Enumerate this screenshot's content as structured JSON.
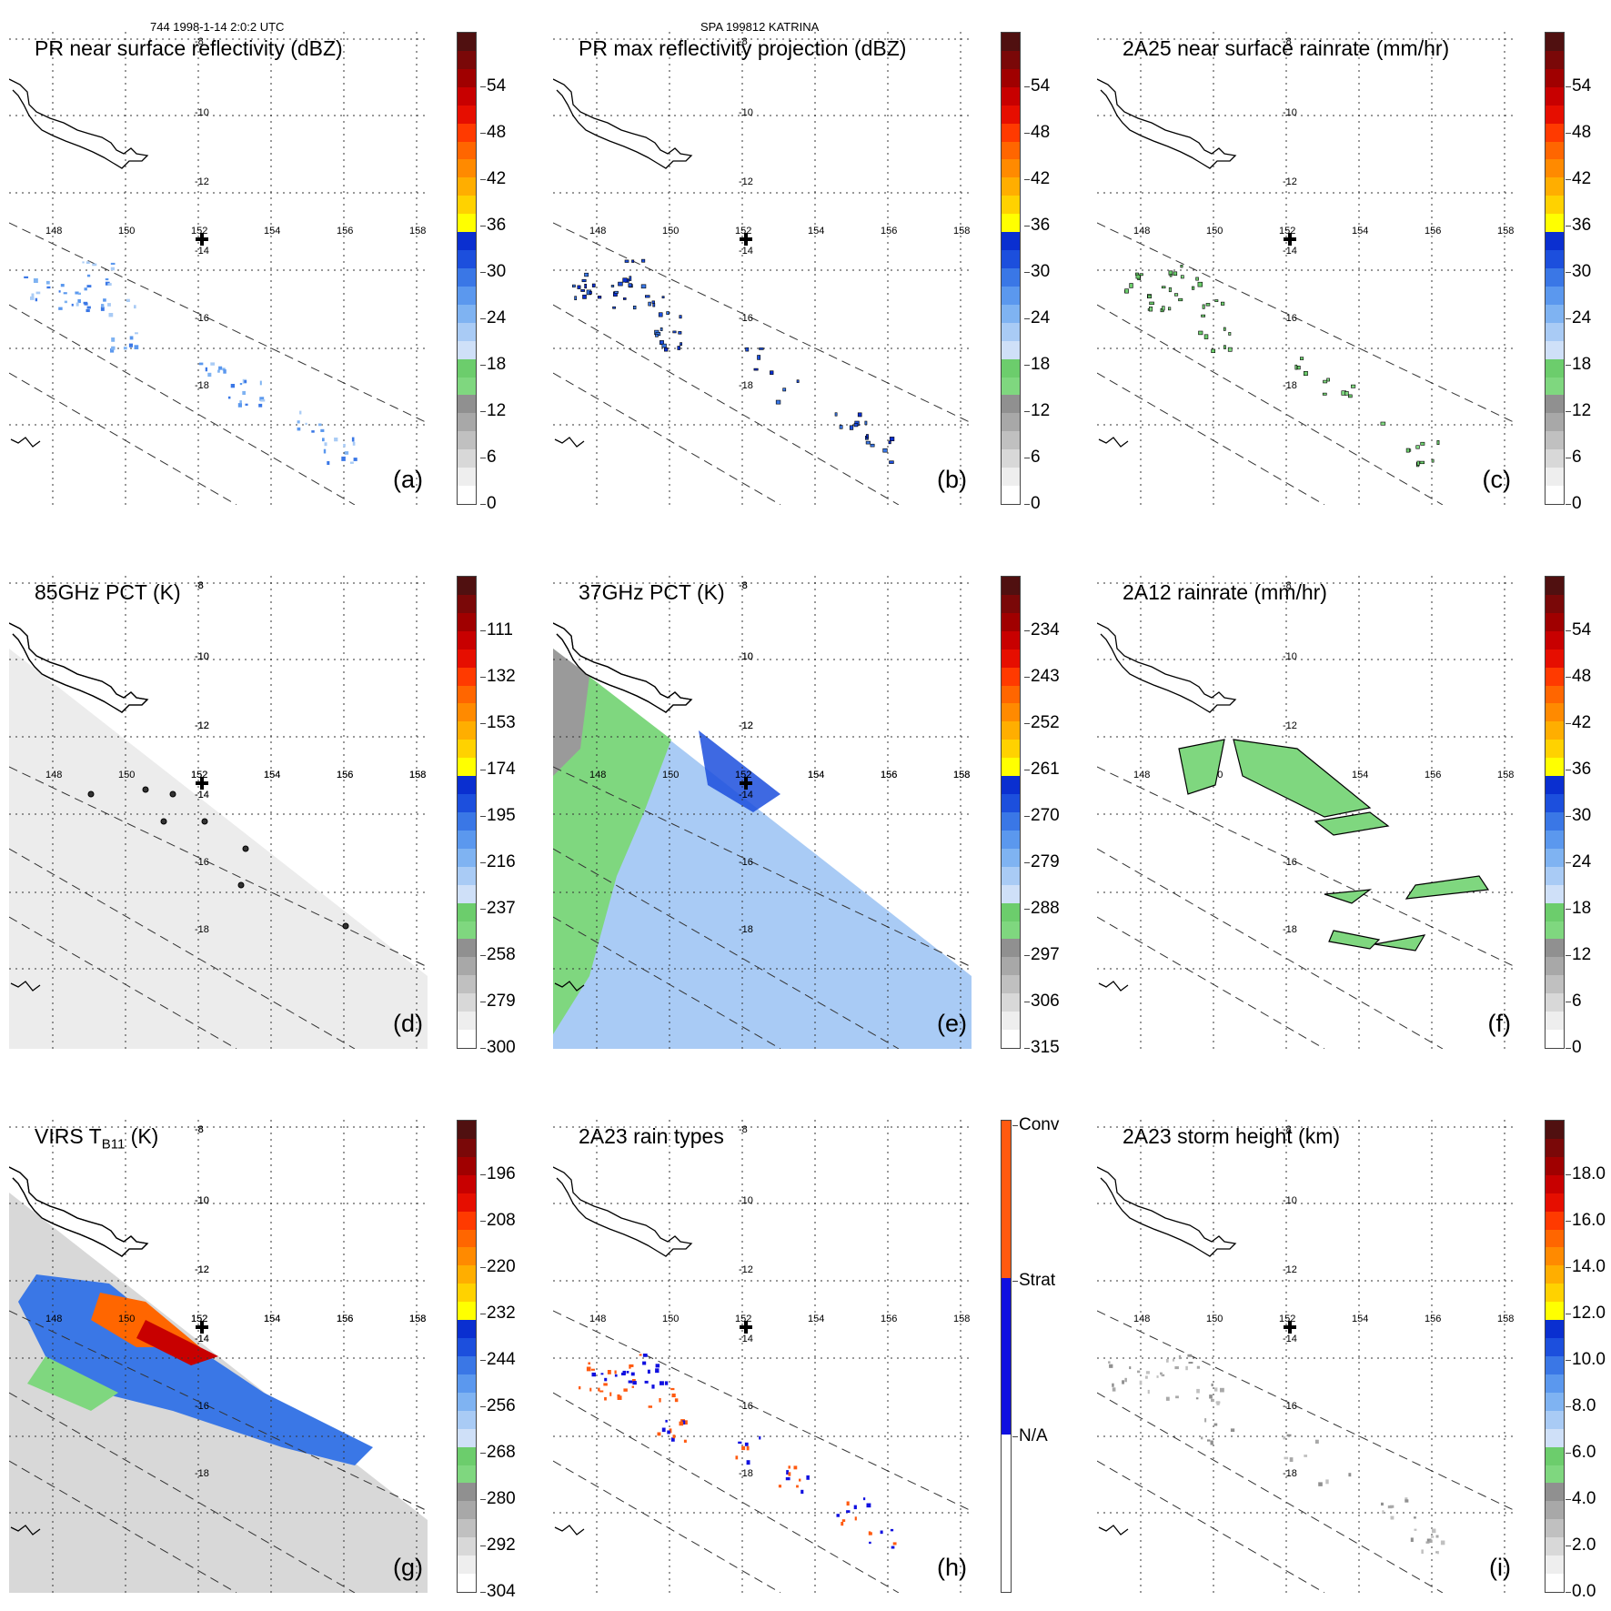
{
  "header": {
    "left": "744 1998-1-14 2:0:2 UTC",
    "center": "SPA 199812 KATRINA"
  },
  "grid": {
    "lon_labels": [
      "148",
      "150",
      "152",
      "154",
      "156",
      "158"
    ],
    "lat_labels": [
      "-8",
      "-10",
      "-12",
      "-14",
      "-16",
      "-18"
    ]
  },
  "colors": {
    "continuous": [
      "#ffffff",
      "#eeeeee",
      "#d8d8d8",
      "#c0c0c0",
      "#a8a8a8",
      "#909090",
      "#7fd77f",
      "#6ccd6c",
      "#cfe0f8",
      "#a9cbf5",
      "#7fb3f2",
      "#5b98ee",
      "#3a77e6",
      "#1c4fdd",
      "#0a2fd0",
      "#ffff00",
      "#ffd200",
      "#ffae00",
      "#ff8a00",
      "#ff6600",
      "#ff3a00",
      "#e60e00",
      "#c80000",
      "#a00000",
      "#7a0808",
      "#501010"
    ],
    "raintype": [
      "#ffffff",
      "#1010e0",
      "#ff5a10"
    ]
  },
  "panels": [
    {
      "id": "a",
      "title": "PR near surface reflectivity (dBZ)",
      "tag": "(a)",
      "scale": "dbz",
      "ticks": [
        "54",
        "48",
        "42",
        "36",
        "30",
        "24",
        "18",
        "12",
        "6",
        "0"
      ]
    },
    {
      "id": "b",
      "title": "PR max reflectivity projection (dBZ)",
      "tag": "(b)",
      "scale": "dbz",
      "ticks": [
        "54",
        "48",
        "42",
        "36",
        "30",
        "24",
        "18",
        "12",
        "6",
        "0"
      ]
    },
    {
      "id": "c",
      "title": "2A25 near surface rainrate (mm/hr)",
      "tag": "(c)",
      "scale": "rain",
      "ticks": [
        "54",
        "48",
        "42",
        "36",
        "30",
        "24",
        "18",
        "12",
        "6",
        "0"
      ]
    },
    {
      "id": "d",
      "title": "85GHz PCT (K)",
      "tag": "(d)",
      "scale": "pct",
      "ticks": [
        "111",
        "132",
        "153",
        "174",
        "195",
        "216",
        "237",
        "258",
        "279",
        "300"
      ]
    },
    {
      "id": "e",
      "title": "37GHz PCT (K)",
      "tag": "(e)",
      "scale": "pct",
      "ticks": [
        "234",
        "243",
        "252",
        "261",
        "270",
        "279",
        "288",
        "297",
        "306",
        "315"
      ]
    },
    {
      "id": "f",
      "title": "2A12 rainrate (mm/hr)",
      "tag": "(f)",
      "scale": "rain",
      "ticks": [
        "54",
        "48",
        "42",
        "36",
        "30",
        "24",
        "18",
        "12",
        "6",
        "0"
      ]
    },
    {
      "id": "g",
      "title_main": "VIRS T",
      "title_sub": "B11",
      "title_end": " (K)",
      "tag": "(g)",
      "scale": "pct",
      "ticks": [
        "196",
        "208",
        "220",
        "232",
        "244",
        "256",
        "268",
        "280",
        "292",
        "304"
      ]
    },
    {
      "id": "h",
      "title": "2A23 rain types",
      "tag": "(h)",
      "scale": "raintype",
      "ticks": [
        "Conv",
        "Strat",
        "N/A"
      ]
    },
    {
      "id": "i",
      "title": "2A23 storm height (km)",
      "tag": "(i)",
      "scale": "rain",
      "ticks": [
        "18.0",
        "16.0",
        "14.0",
        "12.0",
        "10.0",
        "8.0",
        "6.0",
        "4.0",
        "2.0",
        "0.0"
      ]
    }
  ]
}
